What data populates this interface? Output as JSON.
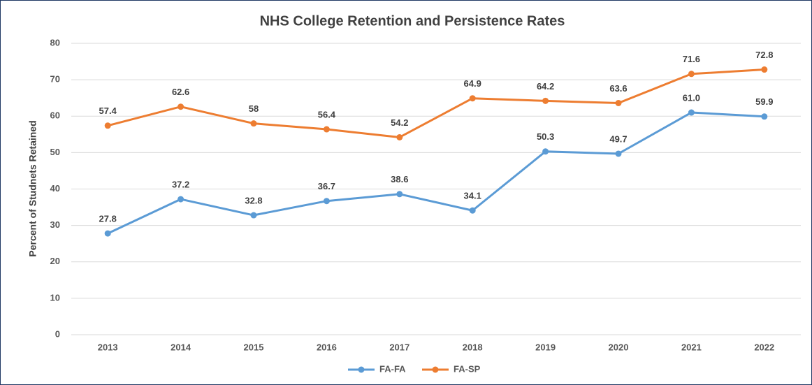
{
  "chart_data": {
    "type": "line",
    "title": "NHS College Retention and Persistence Rates",
    "y_label": "Percent of Studnets Retained",
    "categories": [
      "2013",
      "2014",
      "2015",
      "2016",
      "2017",
      "2018",
      "2019",
      "2020",
      "2021",
      "2022"
    ],
    "series": [
      {
        "name": "FA-FA",
        "color": "#5b9bd5",
        "values": [
          27.8,
          37.2,
          32.8,
          36.7,
          38.6,
          34.1,
          50.3,
          49.7,
          61,
          59.9
        ],
        "value_labels": [
          "27.8",
          "37.2",
          "32.8",
          "36.7",
          "38.6",
          "34.1",
          "50.3",
          "49.7",
          "61.0",
          "59.9"
        ]
      },
      {
        "name": "FA-SP",
        "color": "#ed7d31",
        "values": [
          57.4,
          62.6,
          58,
          56.4,
          54.2,
          64.9,
          64.2,
          63.6,
          71.6,
          72.8
        ]
      }
    ],
    "ylim": [
      0,
      80
    ],
    "yticks": [
      0,
      10,
      20,
      30,
      40,
      50,
      60,
      70,
      80
    ],
    "grid": true,
    "legend": "bottom"
  }
}
